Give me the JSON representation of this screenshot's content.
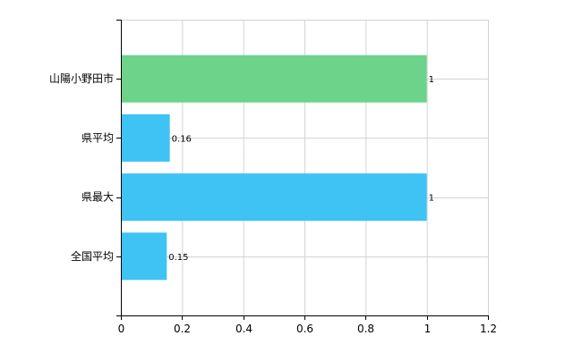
{
  "chart_data": {
    "type": "bar",
    "orientation": "horizontal",
    "categories": [
      "山陽小野田市",
      "県平均",
      "県最大",
      "全国平均"
    ],
    "values": [
      1,
      0.16,
      1,
      0.15
    ],
    "data_labels": [
      "1",
      "0.16",
      "1",
      "0.15"
    ],
    "colors": [
      "#6dd38b",
      "#3fc3f5",
      "#3fc3f5",
      "#3fc3f5"
    ],
    "xlim": [
      0,
      1.2
    ],
    "xticks": [
      0,
      0.2,
      0.4,
      0.6,
      0.8,
      1,
      1.2
    ],
    "xtick_labels": [
      "0",
      "0.2",
      "0.4",
      "0.6",
      "0.8",
      "1",
      "1.2"
    ],
    "grid": true,
    "title": "",
    "xlabel": "",
    "ylabel": ""
  }
}
